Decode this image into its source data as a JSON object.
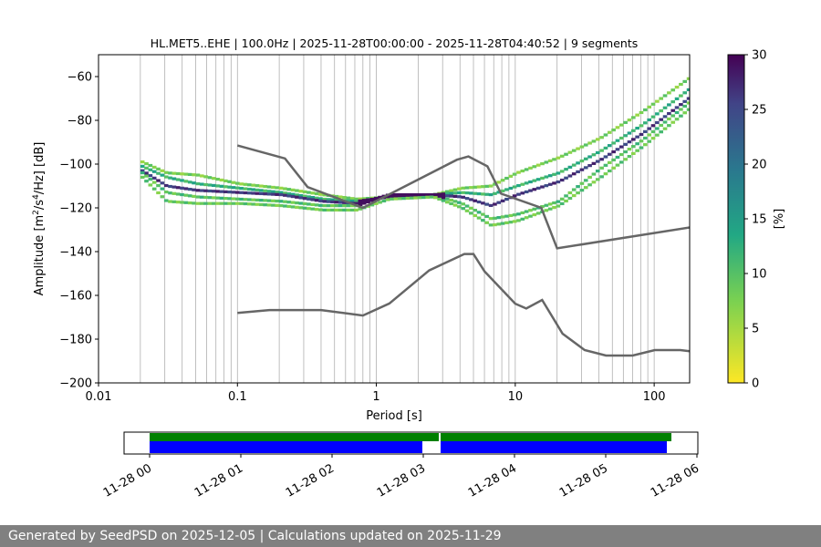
{
  "chart_data": [
    {
      "type": "heatmap",
      "title": "HL.MET5..EHE | 100.0Hz | 2025-11-28T00:00:00 - 2025-11-28T04:40:52 | 9 segments",
      "xlabel": "Period [s]",
      "ylabel_parts": {
        "pre": "Amplitude [m",
        "sup1": "2",
        "mid": "/s",
        "sup2": "4",
        "post": "/Hz] [dB]"
      },
      "x_scale": "log",
      "xlim": [
        0.01,
        180
      ],
      "ylim": [
        -200,
        -50
      ],
      "x_ticks": [
        {
          "v": 0.01,
          "label": "0.01"
        },
        {
          "v": 0.1,
          "label": "0.1"
        },
        {
          "v": 1,
          "label": "1"
        },
        {
          "v": 10,
          "label": "10"
        },
        {
          "v": 100,
          "label": "100"
        }
      ],
      "y_ticks": [
        {
          "v": -60,
          "label": "−60"
        },
        {
          "v": -80,
          "label": "−80"
        },
        {
          "v": -100,
          "label": "−100"
        },
        {
          "v": -120,
          "label": "−120"
        },
        {
          "v": -140,
          "label": "−140"
        },
        {
          "v": -160,
          "label": "−160"
        },
        {
          "v": -180,
          "label": "−180"
        },
        {
          "v": -200,
          "label": "−200"
        }
      ],
      "grid": "vertical minor and major lines on log period axis",
      "noise_models": {
        "nhnm": [
          [
            0.1,
            -91.5
          ],
          [
            0.22,
            -97.4
          ],
          [
            0.32,
            -110.5
          ],
          [
            0.8,
            -120
          ],
          [
            3.8,
            -98
          ],
          [
            4.6,
            -96.5
          ],
          [
            6.3,
            -101
          ],
          [
            7.9,
            -113.5
          ],
          [
            15.4,
            -120
          ],
          [
            20,
            -138.5
          ],
          [
            354.8,
            -126
          ]
        ],
        "nlnm": [
          [
            0.1,
            -168
          ],
          [
            0.17,
            -166.7
          ],
          [
            0.4,
            -166.7
          ],
          [
            0.8,
            -169.2
          ],
          [
            1.24,
            -163.7
          ],
          [
            2.4,
            -148.6
          ],
          [
            4.3,
            -141.1
          ],
          [
            5,
            -141.1
          ],
          [
            6,
            -149
          ],
          [
            10,
            -163.8
          ],
          [
            12,
            -166
          ],
          [
            15.6,
            -162.1
          ],
          [
            21.9,
            -177.5
          ],
          [
            31.6,
            -185
          ],
          [
            45,
            -187.5
          ],
          [
            70,
            -187.5
          ],
          [
            101,
            -185
          ],
          [
            154,
            -185
          ],
          [
            328,
            -187.5
          ]
        ]
      },
      "psd_bands": [
        {
          "points": [
            [
              0.02,
              -99
            ],
            [
              0.03,
              -104
            ],
            [
              0.05,
              -105
            ],
            [
              0.1,
              -109
            ],
            [
              0.2,
              -111
            ],
            [
              0.4,
              -114
            ],
            [
              0.7,
              -116
            ],
            [
              1.2,
              -115
            ],
            [
              2.5,
              -114
            ],
            [
              4,
              -111
            ],
            [
              6.5,
              -110
            ],
            [
              10,
              -104
            ],
            [
              20,
              -97
            ],
            [
              40,
              -88
            ],
            [
              80,
              -76
            ],
            [
              180,
              -60
            ]
          ],
          "pct": 8
        },
        {
          "points": [
            [
              0.02,
              -101
            ],
            [
              0.03,
              -106
            ],
            [
              0.05,
              -109
            ],
            [
              0.1,
              -111
            ],
            [
              0.2,
              -113
            ],
            [
              0.4,
              -116
            ],
            [
              0.7,
              -117
            ],
            [
              1.2,
              -115
            ],
            [
              2.5,
              -114
            ],
            [
              4,
              -113
            ],
            [
              6.5,
              -114
            ],
            [
              10,
              -110
            ],
            [
              20,
              -104
            ],
            [
              40,
              -94
            ],
            [
              80,
              -82
            ],
            [
              180,
              -65
            ]
          ],
          "pct": 12
        },
        {
          "points": [
            [
              0.02,
              -103
            ],
            [
              0.03,
              -110
            ],
            [
              0.05,
              -112
            ],
            [
              0.1,
              -113
            ],
            [
              0.2,
              -114
            ],
            [
              0.4,
              -117
            ],
            [
              0.7,
              -118
            ],
            [
              1.2,
              -114
            ],
            [
              2.5,
              -114
            ],
            [
              4,
              -115
            ],
            [
              6.5,
              -119
            ],
            [
              10,
              -114
            ],
            [
              20,
              -108
            ],
            [
              40,
              -98
            ],
            [
              80,
              -86
            ],
            [
              180,
              -69
            ]
          ],
          "pct": 26
        },
        {
          "points": [
            [
              0.02,
              -104
            ],
            [
              0.03,
              -113
            ],
            [
              0.05,
              -115
            ],
            [
              0.1,
              -116
            ],
            [
              0.2,
              -117
            ],
            [
              0.4,
              -119
            ],
            [
              0.7,
              -119
            ],
            [
              1.2,
              -114
            ],
            [
              2.5,
              -114
            ],
            [
              4,
              -118
            ],
            [
              6.5,
              -125
            ],
            [
              10,
              -123
            ],
            [
              20,
              -117
            ],
            [
              40,
              -102
            ],
            [
              80,
              -89
            ],
            [
              180,
              -71
            ]
          ],
          "pct": 10
        },
        {
          "points": [
            [
              0.02,
              -106
            ],
            [
              0.03,
              -117
            ],
            [
              0.05,
              -118
            ],
            [
              0.1,
              -118
            ],
            [
              0.2,
              -119
            ],
            [
              0.4,
              -121
            ],
            [
              0.7,
              -121
            ],
            [
              1.2,
              -116
            ],
            [
              2.5,
              -115
            ],
            [
              4,
              -120
            ],
            [
              6.5,
              -128
            ],
            [
              10,
              -126
            ],
            [
              20,
              -119
            ],
            [
              40,
              -106
            ],
            [
              80,
              -92
            ],
            [
              180,
              -74
            ]
          ],
          "pct": 9
        }
      ],
      "colorbar": {
        "label": "[%]",
        "range": [
          0,
          30
        ],
        "ticks": [
          "0",
          "5",
          "10",
          "15",
          "20",
          "25",
          "30"
        ],
        "cmap": [
          "#fde725",
          "#5ec962",
          "#21918c",
          "#3b528b",
          "#440154"
        ]
      }
    },
    {
      "type": "timeline",
      "range": [
        "2025-11-28 00:00",
        "2025-11-28 06:00"
      ],
      "ticks": [
        "11-28 00",
        "11-28 01",
        "11-28 02",
        "11-28 03",
        "11-28 04",
        "11-28 05",
        "11-28 06"
      ],
      "rows": [
        {
          "name": "green",
          "color": "#008000",
          "segments": [
            [
              0.0,
              3.17
            ],
            [
              3.19,
              5.72
            ]
          ]
        },
        {
          "name": "blue",
          "color": "#0000ff",
          "segments": [
            [
              0.0,
              2.99
            ],
            [
              3.19,
              5.67
            ]
          ]
        }
      ]
    }
  ],
  "footer": "Generated by SeedPSD on 2025-12-05 | Calculations updated on 2025-11-29"
}
